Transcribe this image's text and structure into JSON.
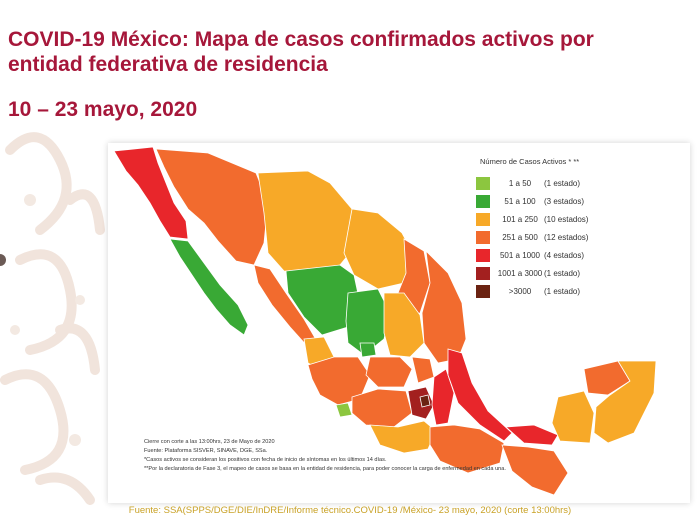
{
  "title_line1": "COVID-19 México: Mapa de casos confirmados activos por",
  "title_line2": "entidad federativa de residencia",
  "dates": "10 – 23 mayo, 2020",
  "legend": {
    "title": "Número de Casos Activos * **",
    "items": [
      {
        "range": "1 a 50",
        "count": "(1 estado)",
        "color": "#8cc63f"
      },
      {
        "range": "51 a 100",
        "count": "(3 estados)",
        "color": "#39a935"
      },
      {
        "range": "101 a 250",
        "count": "(10 estados)",
        "color": "#f7a928"
      },
      {
        "range": "251 a 500",
        "count": "(12 estados)",
        "color": "#f26b2e"
      },
      {
        "range": "501 a 1000",
        "count": "(4 estados)",
        "color": "#e8262b"
      },
      {
        "range": "1001 a 3000",
        "count": "(1 estado)",
        "color": "#a3201f"
      },
      {
        "range": ">3000",
        "count": "(1 estado)",
        "color": "#6b2312"
      }
    ]
  },
  "notes": {
    "cutoff": "Cierre con corte a las 13:00hrs, 23 de Mayo de 2020",
    "platform": "Fuente: Plataforma SISVER, SINAVE, DGE, SSa.",
    "active_note": "*Casos activos se consideran los positivos con fecha de inicio de síntomas en los últimos 14 días.",
    "phase_note": "**Por la declaratoria de Fase 3, el mapeo de casos se basa en la entidad de residencia, para poder conocer la carga de enfermedad en cada una."
  },
  "source": "Fuente: SSA(SPPS/DGE/DIE/InDRE/Informe técnico.COVID-19 /México- 23 mayo, 2020 (corte 13:00hrs)"
}
